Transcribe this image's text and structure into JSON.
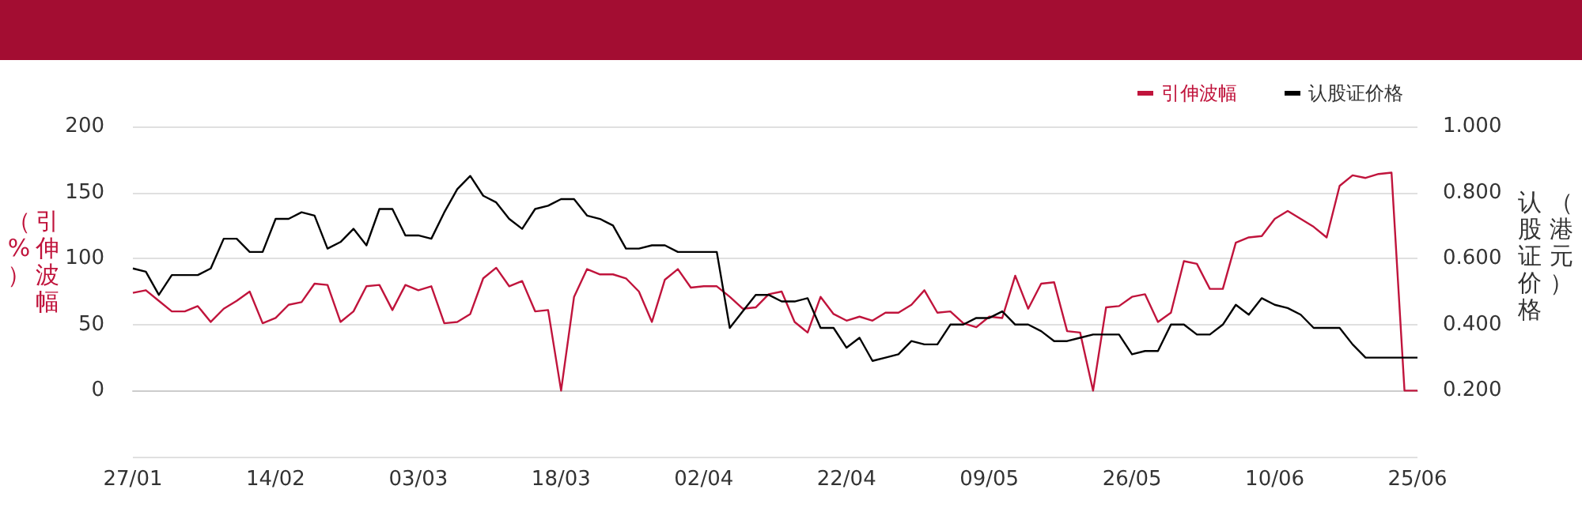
{
  "chart_data": {
    "type": "line",
    "categories": [
      "27/01",
      null,
      null,
      null,
      null,
      null,
      null,
      null,
      null,
      null,
      null,
      "14/02",
      null,
      null,
      null,
      null,
      null,
      null,
      null,
      null,
      null,
      null,
      "03/03",
      null,
      null,
      null,
      null,
      null,
      null,
      null,
      null,
      null,
      null,
      "18/03",
      null,
      null,
      null,
      null,
      null,
      null,
      null,
      null,
      null,
      null,
      "02/04",
      null,
      null,
      null,
      null,
      null,
      null,
      null,
      null,
      null,
      null,
      "22/04",
      null,
      null,
      null,
      null,
      null,
      null,
      null,
      null,
      null,
      null,
      "09/05",
      null,
      null,
      null,
      null,
      null,
      null,
      null,
      null,
      null,
      null,
      "26/05",
      null,
      null,
      null,
      null,
      null,
      null,
      null,
      null,
      null,
      null,
      "10/06",
      null,
      null,
      null,
      null,
      null,
      null,
      null,
      null,
      null,
      null,
      "25/06"
    ],
    "series": [
      {
        "name": "引伸波幅",
        "color": "#c0143c",
        "values": [
          74,
          76,
          68,
          60,
          60,
          64,
          52,
          62,
          68,
          75,
          51,
          55,
          65,
          67,
          81,
          80,
          52,
          60,
          79,
          80,
          61,
          80,
          76,
          79,
          51,
          52,
          58,
          85,
          93,
          79,
          83,
          60,
          61,
          0,
          71,
          92,
          88,
          88,
          85,
          75,
          52,
          84,
          92,
          78,
          79,
          79,
          71,
          62,
          63,
          73,
          75,
          52,
          44,
          71,
          58,
          53,
          56,
          53,
          59,
          59,
          65,
          76,
          59,
          60,
          51,
          48,
          56,
          55,
          87,
          62,
          81,
          82,
          45,
          44,
          0,
          63,
          64,
          71,
          73,
          52,
          59,
          98,
          96,
          77,
          77,
          112,
          116,
          117,
          130,
          136,
          130,
          124,
          116,
          155,
          163,
          161,
          164,
          165,
          0,
          0
        ]
      },
      {
        "name": "认股证价格",
        "color": "#000000",
        "axis": "y2",
        "values": [
          0.57,
          0.56,
          0.49,
          0.55,
          0.55,
          0.55,
          0.57,
          0.66,
          0.66,
          0.62,
          0.62,
          0.72,
          0.72,
          0.74,
          0.73,
          0.63,
          0.65,
          0.69,
          0.64,
          0.75,
          0.75,
          0.67,
          0.67,
          0.66,
          0.74,
          0.81,
          0.85,
          0.79,
          0.77,
          0.72,
          0.69,
          0.75,
          0.76,
          0.78,
          0.78,
          0.73,
          0.72,
          0.7,
          0.63,
          0.63,
          0.64,
          0.64,
          0.62,
          0.62,
          0.62,
          0.62,
          0.39,
          0.44,
          0.49,
          0.49,
          0.47,
          0.47,
          0.48,
          0.39,
          0.39,
          0.33,
          0.36,
          0.29,
          0.3,
          0.31,
          0.35,
          0.34,
          0.34,
          0.4,
          0.4,
          0.42,
          0.42,
          0.44,
          0.4,
          0.4,
          0.38,
          0.35,
          0.35,
          0.36,
          0.37,
          0.37,
          0.37,
          0.31,
          0.32,
          0.32,
          0.4,
          0.4,
          0.37,
          0.37,
          0.4,
          0.46,
          0.43,
          0.48,
          0.46,
          0.45,
          0.43,
          0.39,
          0.39,
          0.39,
          0.34,
          0.3,
          0.3,
          0.3,
          0.3,
          0.3
        ]
      }
    ],
    "ylabel": "引伸波幅（%）",
    "y2label": "认股证价格（港元）",
    "ylim": [
      -50,
      200
    ],
    "yticks": [
      {
        "value": -50,
        "label": null
      },
      0,
      50,
      100,
      150,
      200
    ],
    "y2lim": [
      0,
      1
    ],
    "y2ticks": [
      {
        "value": 0,
        "label": null
      },
      {
        "value": 0.2,
        "label": "0.200"
      },
      {
        "value": 0.4,
        "label": "0.400"
      },
      {
        "value": 0.6,
        "label": "0.600"
      },
      {
        "value": 0.8,
        "label": "0.800"
      },
      {
        "value": 1,
        "label": "1.000"
      }
    ],
    "grid": "y",
    "legend": "top right",
    "marker": "none",
    "line_style": "solid"
  }
}
